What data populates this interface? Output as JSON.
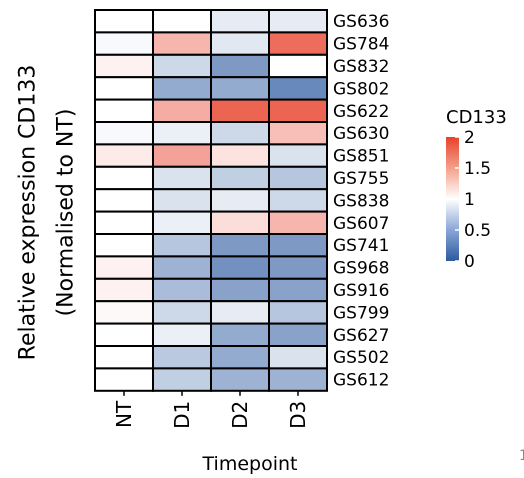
{
  "chart_data": {
    "type": "heatmap",
    "ylabel_line1": "Relative expression CD133",
    "ylabel_line2": "(Normalised to NT)",
    "xlabel": "Timepoint",
    "columns": [
      "NT",
      "D1",
      "D2",
      "D3"
    ],
    "rows": [
      "GS636",
      "GS784",
      "GS832",
      "GS802",
      "GS622",
      "GS630",
      "GS851",
      "GS755",
      "GS838",
      "GS607",
      "GS741",
      "GS968",
      "GS916",
      "GS799",
      "GS627",
      "GS502",
      "GS612"
    ],
    "values": [
      [
        1.0,
        1.0,
        0.9,
        0.9
      ],
      [
        0.97,
        1.35,
        0.88,
        1.75
      ],
      [
        1.05,
        0.8,
        0.45,
        1.0
      ],
      [
        1.0,
        0.55,
        0.55,
        0.35
      ],
      [
        1.0,
        1.4,
        1.8,
        1.8
      ],
      [
        0.97,
        0.92,
        0.8,
        1.3
      ],
      [
        1.08,
        1.45,
        1.12,
        0.85
      ],
      [
        1.0,
        0.85,
        0.75,
        0.7
      ],
      [
        1.0,
        0.85,
        0.9,
        0.8
      ],
      [
        1.0,
        0.92,
        1.15,
        1.35
      ],
      [
        1.0,
        0.7,
        0.45,
        0.45
      ],
      [
        1.05,
        0.6,
        0.4,
        0.45
      ],
      [
        1.05,
        0.65,
        0.5,
        0.5
      ],
      [
        1.02,
        0.8,
        0.9,
        0.7
      ],
      [
        1.0,
        0.92,
        0.55,
        0.5
      ],
      [
        1.0,
        0.72,
        0.55,
        0.85
      ],
      [
        1.0,
        0.75,
        0.6,
        0.6
      ]
    ],
    "legend": {
      "title": "CD133",
      "ticks": [
        2,
        1.5,
        1,
        0.5,
        0
      ],
      "tick_labels": [
        "2",
        "1.5",
        "1",
        "0.5",
        "0"
      ],
      "range": [
        0,
        2
      ]
    },
    "colors": {
      "low": "#2c5aa0",
      "mid": "#ffffff",
      "high": "#e8412b"
    }
  },
  "edge_mark": "1"
}
